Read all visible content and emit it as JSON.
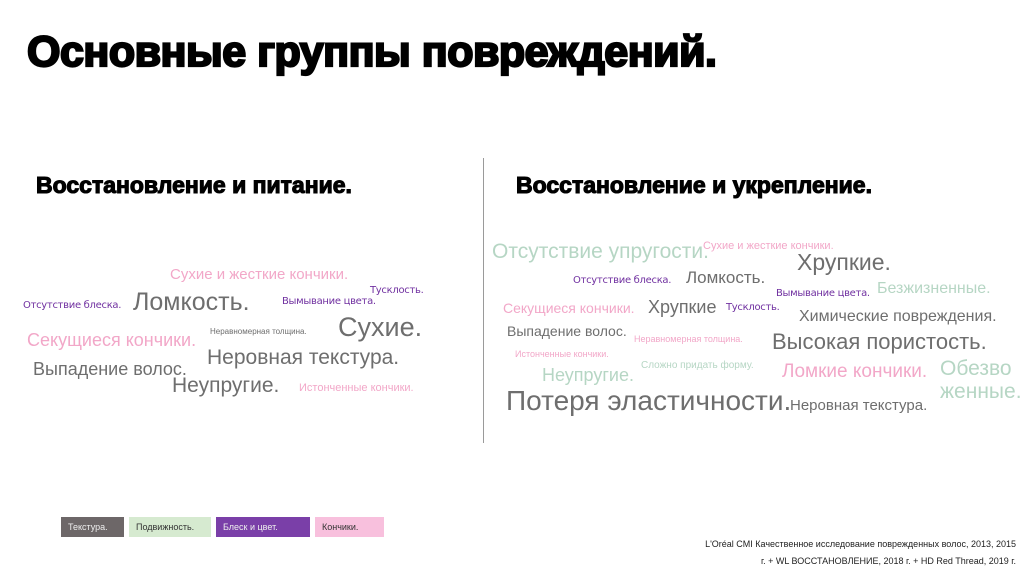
{
  "title": "Основные группы повреждений.",
  "left": {
    "heading": "Восстановление и питание.",
    "words": [
      "Сухие и жесткие кончики.",
      "Отсутствие блеска.",
      "Ломкость.",
      "Вымывание цвета.",
      "Тусклость.",
      "Неравномерная толщина.",
      "Сухие.",
      "Секущиеся кончики.",
      "Неровная текстура.",
      "Выпадение волос.",
      "Неупругие.",
      "Истонченные кончики."
    ]
  },
  "right": {
    "heading": "Восстановление и укрепление.",
    "words": [
      "Отсутствие упругости.",
      "Сухие и жесткие кончики.",
      "Хрупкие.",
      "Отсутствие блеска.",
      "Ломкость.",
      "Вымывание цвета.",
      "Безжизненные.",
      "Секущиеся кончики.",
      "Хрупкие",
      "Тусклость.",
      "Химические повреждения.",
      "Выпадение волос.",
      "Неравномерная толщина.",
      "Высокая пористость.",
      "Истонченные кончики.",
      "Неупругие.",
      "Сложно придать форму.",
      "Ломкие кончики.",
      "Обезво",
      "женные.",
      "Потеря эластичности.",
      "Неровная текстура."
    ]
  },
  "legend": [
    {
      "label": "Текстура.",
      "color": "#6d6768"
    },
    {
      "label": "Подвижность.",
      "color": "#d6ead0"
    },
    {
      "label": "Блеск и цвет.",
      "color": "#7a3fa8"
    },
    {
      "label": "Кончики.",
      "color": "#f8c0dd"
    }
  ],
  "source": {
    "line1": "L'Oréal CMI Качественное исследование поврежденных волос, 2013, 2015",
    "line2": "г. + WL ВОССТАНОВЛЕНИЕ, 2018 г. + HD Red Thread, 2019 г."
  }
}
